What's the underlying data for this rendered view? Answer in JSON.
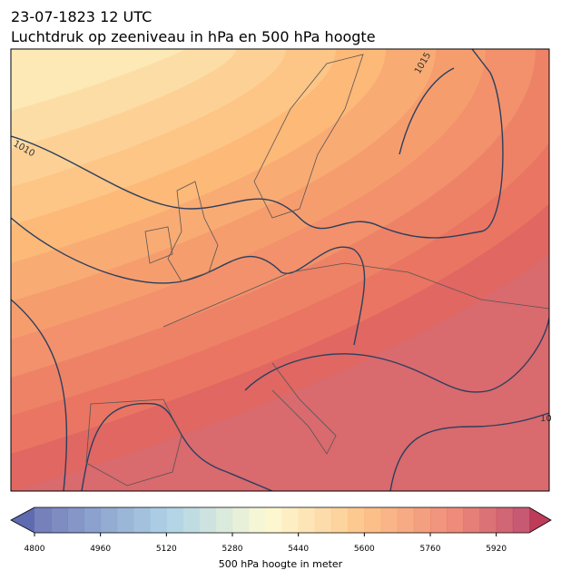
{
  "title": "23-07-1823 12 UTC",
  "subtitle": "Luchtdruk op zeeniveau in hPa en 500 hPa hoogte",
  "isobar_labels": [
    "1010",
    "1015",
    "10"
  ],
  "colorbar": {
    "label": "500 hPa hoogte in meter",
    "lim": [
      4800,
      6000
    ],
    "ticks": [
      4800,
      4960,
      5120,
      5280,
      5440,
      5600,
      5760,
      5920
    ]
  }
}
